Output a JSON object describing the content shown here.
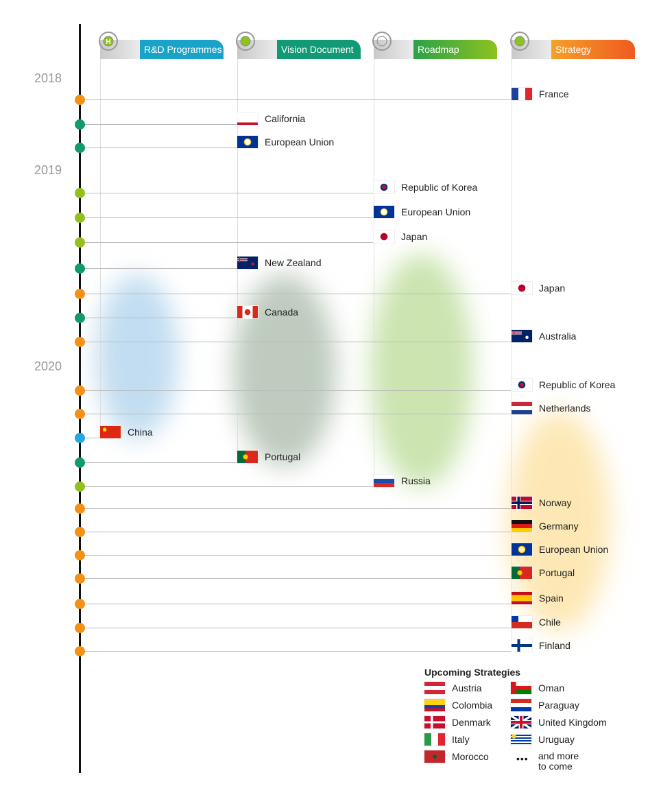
{
  "colors": {
    "rnd": "#1aa3c9",
    "vision": "#119a74",
    "roadmap": "#8dc21f",
    "strategy": "#ef5a1f",
    "dot_orange": "#f39217",
    "dot_green": "#139a6a",
    "dot_lime": "#93c01f",
    "dot_blue": "#22a9e1"
  },
  "years": [
    "2018",
    "2019",
    "2020"
  ],
  "columns": [
    {
      "key": "rnd",
      "label": "R&D Programmes",
      "icon": "flask-hydrogen-icon"
    },
    {
      "key": "vision",
      "label": "Vision Document",
      "icon": "eye-icon"
    },
    {
      "key": "roadmap",
      "label": "Roadmap",
      "icon": "pointer-target-icon"
    },
    {
      "key": "strategy",
      "label": "Strategy",
      "icon": "dart-target-icon"
    }
  ],
  "entries": [
    {
      "col": "strategy",
      "label": "France",
      "flag": "fr"
    },
    {
      "col": "vision",
      "label": "California",
      "flag": "ca-state"
    },
    {
      "col": "vision",
      "label": "European Union",
      "flag": "eu"
    },
    {
      "col": "roadmap",
      "label": "Republic of Korea",
      "flag": "kr"
    },
    {
      "col": "roadmap",
      "label": "European Union",
      "flag": "eu"
    },
    {
      "col": "roadmap",
      "label": "Japan",
      "flag": "jp"
    },
    {
      "col": "vision",
      "label": "New Zealand",
      "flag": "nz"
    },
    {
      "col": "strategy",
      "label": "Japan",
      "flag": "jp"
    },
    {
      "col": "vision",
      "label": "Canada",
      "flag": "can"
    },
    {
      "col": "strategy",
      "label": "Australia",
      "flag": "au"
    },
    {
      "col": "strategy",
      "label": "Republic of Korea",
      "flag": "kr"
    },
    {
      "col": "strategy",
      "label": "Netherlands",
      "flag": "nl"
    },
    {
      "col": "rnd",
      "label": "China",
      "flag": "cn"
    },
    {
      "col": "vision",
      "label": "Portugal",
      "flag": "pt"
    },
    {
      "col": "roadmap",
      "label": "Russia",
      "flag": "ru"
    },
    {
      "col": "strategy",
      "label": "Norway",
      "flag": "no"
    },
    {
      "col": "strategy",
      "label": "Germany",
      "flag": "de"
    },
    {
      "col": "strategy",
      "label": "European Union",
      "flag": "eu"
    },
    {
      "col": "strategy",
      "label": "Portugal",
      "flag": "pt"
    },
    {
      "col": "strategy",
      "label": "Spain",
      "flag": "es"
    },
    {
      "col": "strategy",
      "label": "Chile",
      "flag": "cl"
    },
    {
      "col": "strategy",
      "label": "Finland",
      "flag": "fi"
    }
  ],
  "legend": {
    "title": "Upcoming Strategies",
    "items": [
      {
        "label": "Austria",
        "flag": "at"
      },
      {
        "label": "Colombia",
        "flag": "co"
      },
      {
        "label": "Denmark",
        "flag": "dk"
      },
      {
        "label": "Italy",
        "flag": "it"
      },
      {
        "label": "Morocco",
        "flag": "ma"
      },
      {
        "label": "Oman",
        "flag": "om"
      },
      {
        "label": "Paraguay",
        "flag": "py"
      },
      {
        "label": "United Kingdom",
        "flag": "gb"
      },
      {
        "label": "Uruguay",
        "flag": "uy"
      },
      {
        "label": "and more to come",
        "flag": "dots"
      }
    ]
  }
}
